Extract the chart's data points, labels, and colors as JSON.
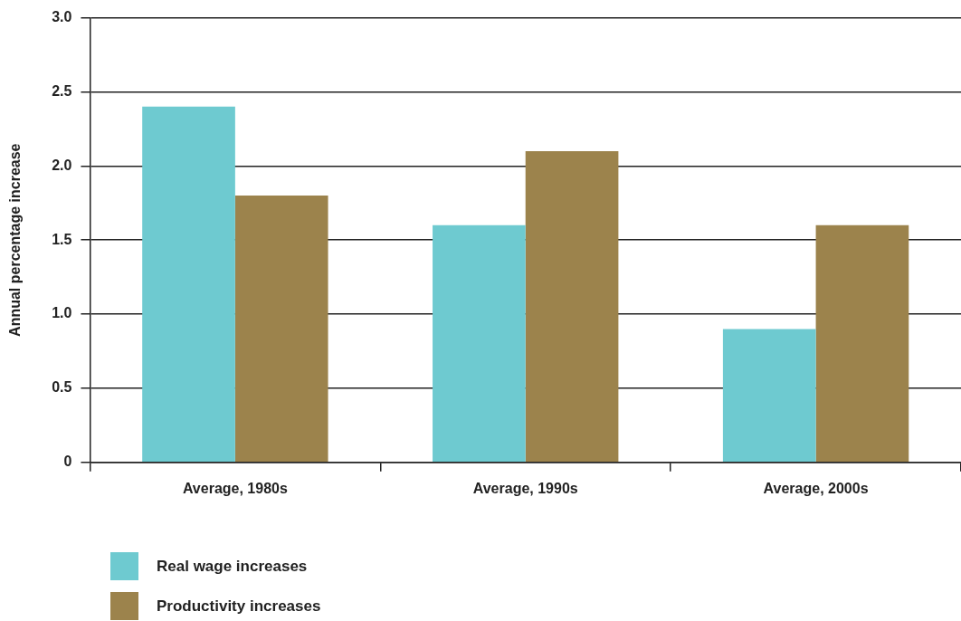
{
  "chart_data": {
    "type": "bar",
    "ylabel": "Annual percentage increase",
    "categories": [
      "Average, 1980s",
      "Average, 1990s",
      "Average, 2000s"
    ],
    "series": [
      {
        "name": "Real wage increases",
        "color": "#6ecad0",
        "values": [
          2.4,
          1.6,
          0.9
        ]
      },
      {
        "name": "Productivity increases",
        "color": "#9c834c",
        "values": [
          1.8,
          2.1,
          1.6
        ]
      }
    ],
    "ylim": [
      0,
      3.0
    ],
    "yticks": [
      {
        "value": 0,
        "label": "0"
      },
      0.5,
      {
        "value": 1,
        "label": "1.0"
      },
      1.5,
      {
        "value": 2,
        "label": "2.0"
      },
      2.5,
      {
        "value": 3,
        "label": "3.0"
      }
    ],
    "grid": "y",
    "legend": "bottom left"
  }
}
